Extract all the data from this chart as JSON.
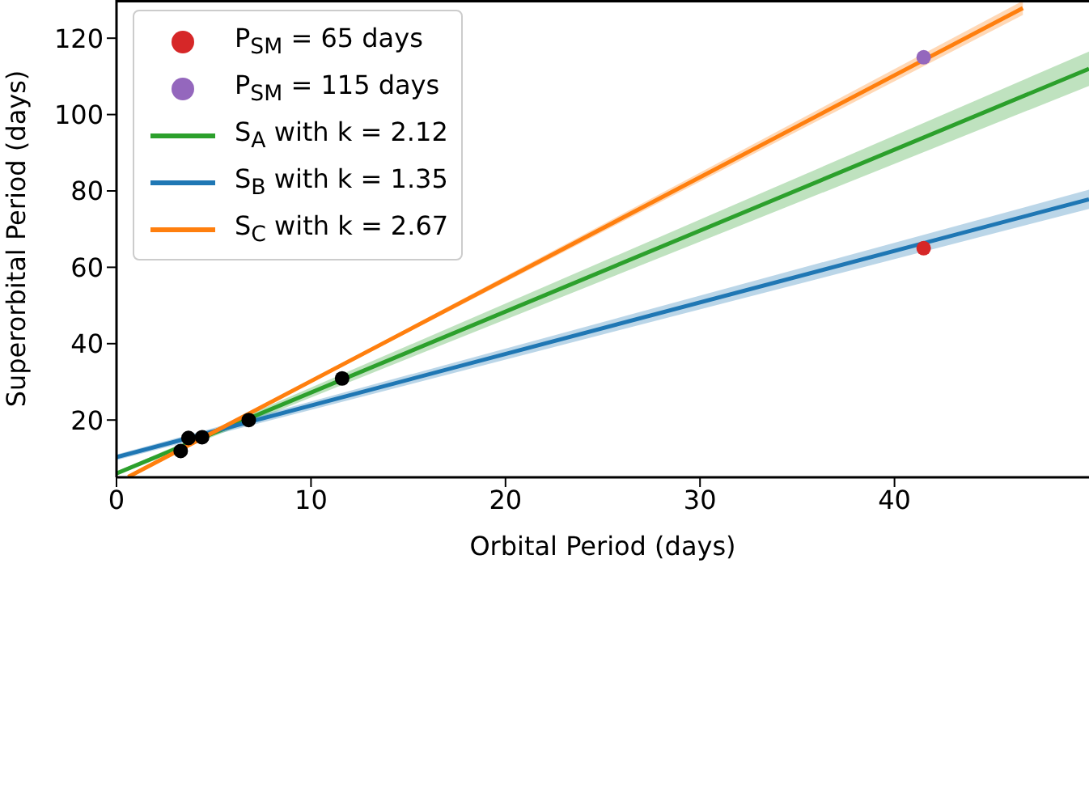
{
  "chart_data": {
    "type": "line",
    "xlabel": "Orbital Period (days)",
    "ylabel": "Superorbital Period (days)",
    "xlim": [
      0,
      50
    ],
    "ylim": [
      5,
      130
    ],
    "xticks": [
      0,
      10,
      20,
      30,
      40
    ],
    "yticks": [
      20,
      40,
      60,
      80,
      100,
      120
    ],
    "legend": "top left",
    "marker": "circle",
    "series": [
      {
        "type": "scatter",
        "name": "P$_{SM}$ = 65 days",
        "color": "#d62728",
        "x": [
          41.5
        ],
        "values": [
          65
        ]
      },
      {
        "type": "scatter",
        "name": "P$_{SM}$ = 115 days",
        "color": "#9467bd",
        "x": [
          41.5
        ],
        "values": [
          115
        ]
      },
      {
        "name": "S$_{A}$ with k = 2.12",
        "marker": "none",
        "color": "#2ca02c",
        "x": [
          0,
          50
        ],
        "values": [
          6,
          112
        ],
        "lower": [
          5.5,
          107.5
        ],
        "upper": [
          6.5,
          116.5
        ]
      },
      {
        "name": "S$_{B}$ with k = 1.35",
        "marker": "none",
        "color": "#1f77b4",
        "x": [
          0,
          50
        ],
        "values": [
          10.3,
          77.8
        ],
        "lower": [
          9.5,
          75.3
        ],
        "upper": [
          11,
          80.3
        ]
      },
      {
        "name": "S$_{C}$ with k = 2.67",
        "marker": "none",
        "color": "#ff7f0e",
        "x": [
          0.6,
          46.6
        ],
        "values": [
          5.1,
          127.9
        ],
        "lower": [
          5.1,
          126.1
        ],
        "upper": [
          5.1,
          129.8
        ]
      },
      {
        "type": "scatter",
        "color": "#000000",
        "x": [
          3.3,
          3.7,
          4.4,
          6.8,
          11.6
        ],
        "values": [
          11.9,
          15.3,
          15.5,
          20,
          30.9
        ]
      }
    ]
  }
}
